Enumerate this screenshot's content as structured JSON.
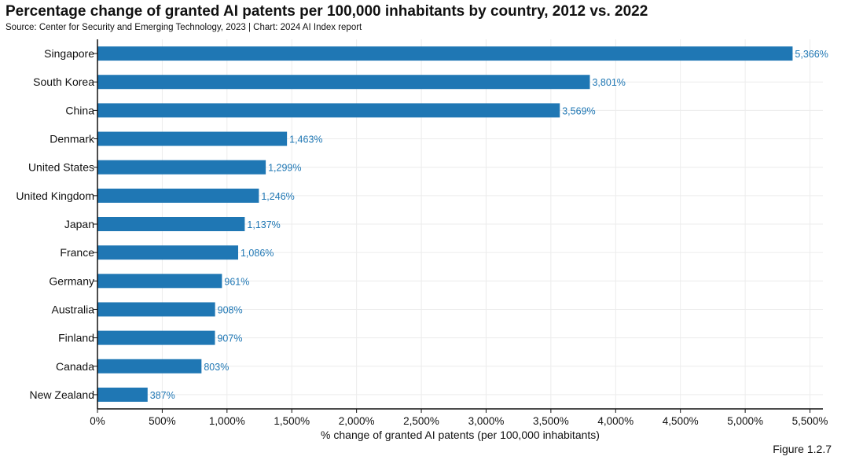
{
  "chart_data": {
    "type": "bar",
    "orientation": "horizontal",
    "title": "Percentage change of granted AI patents per 100,000 inhabitants by country, 2012 vs. 2022",
    "subtitle": "Source: Center for Security and Emerging Technology, 2023 | Chart: 2024 AI Index report",
    "xlabel": "% change of granted AI patents (per 100,000 inhabitants)",
    "ylabel": "",
    "xlim": [
      0,
      5600
    ],
    "xticks": [
      0,
      500,
      1000,
      1500,
      2000,
      2500,
      3000,
      3500,
      4000,
      4500,
      5000,
      5500
    ],
    "xtick_labels": [
      "0%",
      "500%",
      "1,000%",
      "1,500%",
      "2,000%",
      "2,500%",
      "3,000%",
      "3,500%",
      "4,000%",
      "4,500%",
      "5,000%",
      "5,500%"
    ],
    "categories": [
      "Singapore",
      "South Korea",
      "China",
      "Denmark",
      "United States",
      "United Kingdom",
      "Japan",
      "France",
      "Germany",
      "Australia",
      "Finland",
      "Canada",
      "New Zealand"
    ],
    "values": [
      5366,
      3801,
      3569,
      1463,
      1299,
      1246,
      1137,
      1086,
      961,
      908,
      907,
      803,
      387
    ],
    "data_labels": [
      "5,366%",
      "3,801%",
      "3,569%",
      "1,463%",
      "1,299%",
      "1,246%",
      "1,137%",
      "1,086%",
      "961%",
      "908%",
      "907%",
      "803%",
      "387%"
    ],
    "bar_color": "#1f77b4",
    "label_color": "#1f77b4",
    "grid": true
  },
  "figure_label": "Figure 1.2.7"
}
